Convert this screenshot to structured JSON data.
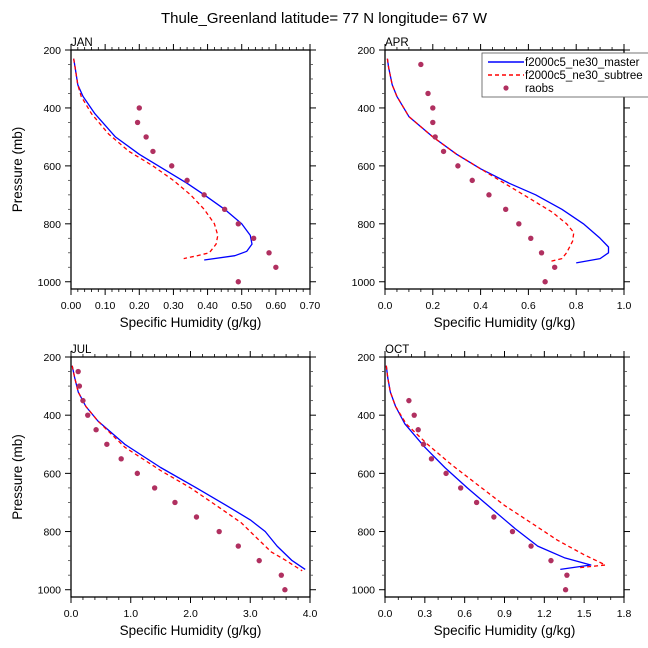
{
  "title": "Thule_Greenland  latitude= 77 N longitude= 67 W",
  "colors": {
    "model_master": "#0000ff",
    "model_subtree": "#ff0000",
    "raobs": "#b03060",
    "axis": "#000000"
  },
  "legend": {
    "placement": "top-right of APR panel",
    "entries": [
      {
        "label": "f2000c5_ne30_master",
        "style": "solid-line"
      },
      {
        "label": "f2000c5_ne30_subtree",
        "style": "dashed-line"
      },
      {
        "label": "raobs",
        "style": "marker"
      }
    ]
  },
  "chart_data": [
    {
      "type": "line",
      "panel": "JAN",
      "title": "JAN",
      "xlabel": "Specific Humidity (g/kg)",
      "ylabel": "Pressure (mb)",
      "xlim": [
        0,
        0.7
      ],
      "ylim": [
        200,
        1025
      ],
      "y_inverted": true,
      "xticks": [
        0,
        0.1,
        0.2,
        0.3,
        0.4,
        0.5,
        0.6,
        0.7
      ],
      "xtick_labels": [
        "0.00",
        "0.10",
        "0.20",
        "0.30",
        "0.40",
        "0.50",
        "0.60",
        "0.70"
      ],
      "xminor_per_major": 5,
      "yticks": [
        200,
        400,
        600,
        800,
        1000
      ],
      "ytick_labels": [
        "200",
        "400",
        "600",
        "800",
        "1000"
      ],
      "yminor_step": 50,
      "show_ylabel": true,
      "grid": false,
      "series": [
        {
          "name": "f2000c5_ne30_master",
          "style": "solid",
          "x": [
            0.008,
            0.012,
            0.02,
            0.035,
            0.07,
            0.13,
            0.2,
            0.27,
            0.34,
            0.39,
            0.45,
            0.5,
            0.525,
            0.53,
            0.515,
            0.48,
            0.39
          ],
          "y": [
            230,
            260,
            320,
            360,
            420,
            500,
            560,
            610,
            660,
            700,
            750,
            800,
            840,
            870,
            895,
            910,
            925
          ]
        },
        {
          "name": "f2000c5_ne30_subtree",
          "style": "dashed",
          "x": [
            0.008,
            0.012,
            0.02,
            0.03,
            0.06,
            0.11,
            0.17,
            0.24,
            0.3,
            0.35,
            0.39,
            0.42,
            0.43,
            0.425,
            0.405,
            0.37,
            0.33
          ],
          "y": [
            230,
            260,
            320,
            360,
            420,
            490,
            550,
            600,
            650,
            700,
            750,
            800,
            840,
            870,
            900,
            910,
            920
          ]
        },
        {
          "name": "raobs",
          "style": "marker",
          "x": [
            0.2,
            0.195,
            0.22,
            0.24,
            0.295,
            0.34,
            0.39,
            0.45,
            0.49,
            0.535,
            0.58,
            0.6,
            0.49
          ],
          "y": [
            400,
            450,
            500,
            550,
            600,
            650,
            700,
            750,
            800,
            850,
            900,
            950,
            1000
          ]
        }
      ]
    },
    {
      "type": "line",
      "panel": "APR",
      "title": "APR",
      "xlabel": "Specific Humidity (g/kg)",
      "ylabel": "",
      "xlim": [
        0,
        1.0
      ],
      "ylim": [
        200,
        1025
      ],
      "y_inverted": true,
      "xticks": [
        0,
        0.2,
        0.4,
        0.6,
        0.8,
        1.0
      ],
      "xtick_labels": [
        "0.0",
        "0.2",
        "0.4",
        "0.6",
        "0.8",
        "1.0"
      ],
      "xminor_per_major": 4,
      "yticks": [
        200,
        400,
        600,
        800,
        1000
      ],
      "ytick_labels": [
        "200",
        "400",
        "600",
        "800",
        "1000"
      ],
      "yminor_step": 50,
      "show_ylabel": false,
      "grid": false,
      "series": [
        {
          "name": "f2000c5_ne30_master",
          "style": "solid",
          "x": [
            0.01,
            0.015,
            0.03,
            0.05,
            0.1,
            0.2,
            0.3,
            0.4,
            0.52,
            0.63,
            0.74,
            0.83,
            0.9,
            0.935,
            0.935,
            0.9,
            0.8
          ],
          "y": [
            230,
            260,
            320,
            360,
            430,
            500,
            560,
            610,
            660,
            700,
            750,
            800,
            850,
            880,
            900,
            920,
            935
          ]
        },
        {
          "name": "f2000c5_ne30_subtree",
          "style": "dashed",
          "x": [
            0.01,
            0.015,
            0.03,
            0.05,
            0.1,
            0.2,
            0.3,
            0.4,
            0.5,
            0.6,
            0.7,
            0.76,
            0.79,
            0.785,
            0.76,
            0.74,
            0.69
          ],
          "y": [
            230,
            260,
            320,
            360,
            430,
            500,
            560,
            610,
            660,
            710,
            760,
            800,
            830,
            860,
            900,
            920,
            930
          ]
        },
        {
          "name": "raobs",
          "style": "marker",
          "x": [
            0.15,
            0.18,
            0.2,
            0.2,
            0.21,
            0.245,
            0.305,
            0.365,
            0.435,
            0.505,
            0.56,
            0.61,
            0.655,
            0.71,
            0.67
          ],
          "y": [
            250,
            350,
            400,
            450,
            500,
            550,
            600,
            650,
            700,
            750,
            800,
            850,
            900,
            950,
            1000
          ]
        }
      ]
    },
    {
      "type": "line",
      "panel": "JUL",
      "title": "JUL",
      "xlabel": "Specific Humidity (g/kg)",
      "ylabel": "Pressure (mb)",
      "xlim": [
        0,
        4.0
      ],
      "ylim": [
        200,
        1025
      ],
      "y_inverted": true,
      "xticks": [
        0,
        1,
        2,
        3,
        4
      ],
      "xtick_labels": [
        "0.0",
        "1.0",
        "2.0",
        "3.0",
        "4.0"
      ],
      "xminor_per_major": 5,
      "yticks": [
        200,
        400,
        600,
        800,
        1000
      ],
      "ytick_labels": [
        "200",
        "400",
        "600",
        "800",
        "1000"
      ],
      "yminor_step": 50,
      "show_ylabel": true,
      "grid": false,
      "series": [
        {
          "name": "f2000c5_ne30_master",
          "style": "solid",
          "x": [
            0.02,
            0.06,
            0.12,
            0.25,
            0.45,
            0.9,
            1.5,
            2.1,
            2.6,
            3.0,
            3.25,
            3.45,
            3.7,
            3.92
          ],
          "y": [
            230,
            270,
            320,
            370,
            420,
            500,
            580,
            650,
            710,
            760,
            800,
            850,
            900,
            930
          ]
        },
        {
          "name": "f2000c5_ne30_subtree",
          "style": "dashed",
          "x": [
            0.02,
            0.06,
            0.12,
            0.25,
            0.45,
            0.9,
            1.5,
            2.0,
            2.5,
            2.85,
            3.1,
            3.35,
            3.6,
            3.87
          ],
          "y": [
            230,
            270,
            320,
            370,
            420,
            510,
            590,
            650,
            720,
            770,
            820,
            870,
            900,
            935
          ]
        },
        {
          "name": "raobs",
          "style": "marker",
          "x": [
            0.12,
            0.14,
            0.2,
            0.28,
            0.42,
            0.6,
            0.84,
            1.11,
            1.4,
            1.74,
            2.1,
            2.48,
            2.8,
            3.15,
            3.52,
            3.58
          ],
          "y": [
            250,
            300,
            350,
            400,
            450,
            500,
            550,
            600,
            650,
            700,
            750,
            800,
            850,
            900,
            950,
            1000
          ]
        }
      ]
    },
    {
      "type": "line",
      "panel": "OCT",
      "title": "OCT",
      "xlabel": "Specific Humidity (g/kg)",
      "ylabel": "",
      "xlim": [
        0,
        1.8
      ],
      "ylim": [
        200,
        1025
      ],
      "y_inverted": true,
      "xticks": [
        0,
        0.3,
        0.6,
        0.9,
        1.2,
        1.5,
        1.8
      ],
      "xtick_labels": [
        "0.0",
        "0.3",
        "0.6",
        "0.9",
        "1.2",
        "1.5",
        "1.8"
      ],
      "xminor_per_major": 3,
      "yticks": [
        200,
        400,
        600,
        800,
        1000
      ],
      "ytick_labels": [
        "200",
        "400",
        "600",
        "800",
        "1000"
      ],
      "yminor_step": 50,
      "show_ylabel": false,
      "grid": false,
      "series": [
        {
          "name": "f2000c5_ne30_master",
          "style": "solid",
          "x": [
            0.01,
            0.02,
            0.04,
            0.08,
            0.15,
            0.3,
            0.45,
            0.62,
            0.8,
            0.98,
            1.15,
            1.35,
            1.55,
            1.32
          ],
          "y": [
            230,
            270,
            320,
            370,
            430,
            510,
            580,
            650,
            720,
            790,
            850,
            890,
            915,
            930
          ]
        },
        {
          "name": "f2000c5_ne30_subtree",
          "style": "dashed",
          "x": [
            0.01,
            0.02,
            0.04,
            0.08,
            0.16,
            0.32,
            0.5,
            0.7,
            0.9,
            1.1,
            1.3,
            1.5,
            1.66,
            1.45
          ],
          "y": [
            230,
            270,
            320,
            370,
            430,
            500,
            570,
            640,
            710,
            770,
            830,
            880,
            915,
            925
          ]
        },
        {
          "name": "raobs",
          "style": "marker",
          "x": [
            0.18,
            0.22,
            0.25,
            0.29,
            0.35,
            0.46,
            0.57,
            0.69,
            0.82,
            0.96,
            1.1,
            1.25,
            1.37,
            1.36
          ],
          "y": [
            350,
            400,
            450,
            500,
            550,
            600,
            650,
            700,
            750,
            800,
            850,
            900,
            950,
            1000
          ]
        }
      ]
    }
  ]
}
